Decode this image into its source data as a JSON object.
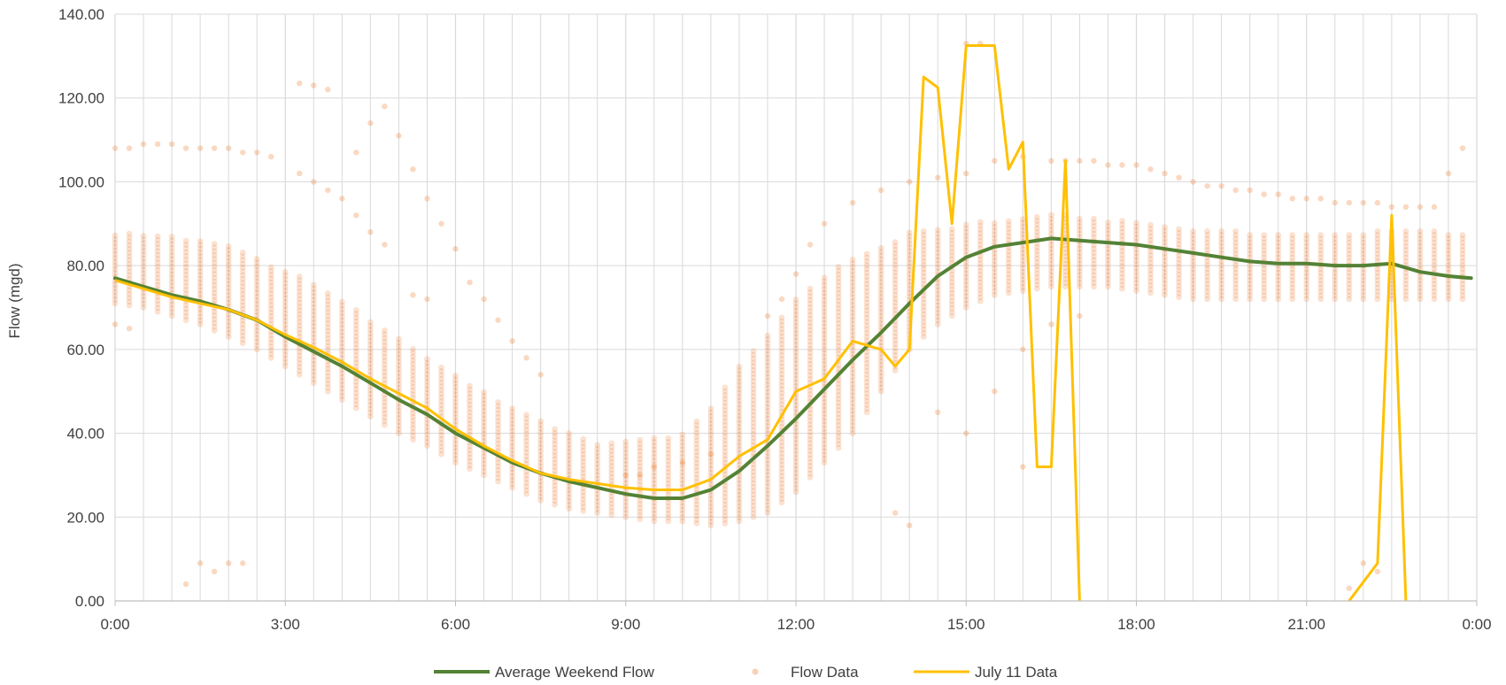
{
  "chart_data": {
    "type": "line",
    "title": "",
    "xlabel": "",
    "ylabel": "Flow (mgd)",
    "x_unit": "hours",
    "xlim": [
      0,
      24
    ],
    "ylim": [
      0,
      140
    ],
    "grid": true,
    "legend_position": "bottom",
    "x_ticks": [
      {
        "value": 0,
        "label": "0:00"
      },
      {
        "value": 3,
        "label": "3:00"
      },
      {
        "value": 6,
        "label": "6:00"
      },
      {
        "value": 9,
        "label": "9:00"
      },
      {
        "value": 12,
        "label": "12:00"
      },
      {
        "value": 15,
        "label": "15:00"
      },
      {
        "value": 18,
        "label": "18:00"
      },
      {
        "value": 21,
        "label": "21:00"
      },
      {
        "value": 24,
        "label": "0:00"
      }
    ],
    "y_ticks": [
      {
        "value": 0,
        "label": "0.00"
      },
      {
        "value": 20,
        "label": "20.00"
      },
      {
        "value": 40,
        "label": "40.00"
      },
      {
        "value": 60,
        "label": "60.00"
      },
      {
        "value": 80,
        "label": "80.00"
      },
      {
        "value": 100,
        "label": "100.00"
      },
      {
        "value": 120,
        "label": "120.00"
      },
      {
        "value": 140,
        "label": "140.00"
      }
    ],
    "series": [
      {
        "name": "Average Weekend Flow",
        "kind": "line",
        "color": "#548235",
        "points": [
          [
            0,
            77
          ],
          [
            0.5,
            75
          ],
          [
            1,
            73
          ],
          [
            1.5,
            71.5
          ],
          [
            2,
            69.5
          ],
          [
            2.5,
            67
          ],
          [
            3,
            63
          ],
          [
            3.5,
            59.5
          ],
          [
            4,
            56
          ],
          [
            4.5,
            52
          ],
          [
            5,
            48
          ],
          [
            5.5,
            44.5
          ],
          [
            6,
            40
          ],
          [
            6.5,
            36.5
          ],
          [
            7,
            33
          ],
          [
            7.5,
            30.5
          ],
          [
            8,
            28.5
          ],
          [
            8.5,
            27
          ],
          [
            9,
            25.5
          ],
          [
            9.5,
            24.5
          ],
          [
            10,
            24.5
          ],
          [
            10.5,
            26.5
          ],
          [
            11,
            31
          ],
          [
            11.5,
            37
          ],
          [
            12,
            43.5
          ],
          [
            12.5,
            50.5
          ],
          [
            13,
            57.5
          ],
          [
            13.5,
            64
          ],
          [
            14,
            71
          ],
          [
            14.5,
            77.5
          ],
          [
            15,
            82
          ],
          [
            15.5,
            84.5
          ],
          [
            16,
            85.5
          ],
          [
            16.5,
            86.5
          ],
          [
            17,
            86
          ],
          [
            17.5,
            85.5
          ],
          [
            18,
            85
          ],
          [
            18.5,
            84
          ],
          [
            19,
            83
          ],
          [
            19.5,
            82
          ],
          [
            20,
            81
          ],
          [
            20.5,
            80.5
          ],
          [
            21,
            80.5
          ],
          [
            21.5,
            80
          ],
          [
            22,
            80
          ],
          [
            22.5,
            80.5
          ],
          [
            23,
            78.5
          ],
          [
            23.5,
            77.5
          ],
          [
            23.9,
            77
          ]
        ]
      },
      {
        "name": "Flow Data",
        "kind": "scatter-band",
        "color": "#ED7D31",
        "interval_hours": 0.25,
        "band": [
          [
            0,
            71,
            88
          ],
          [
            0.5,
            70,
            88
          ],
          [
            1,
            68,
            87
          ],
          [
            1.5,
            66,
            86
          ],
          [
            2,
            63,
            85
          ],
          [
            2.5,
            60,
            82
          ],
          [
            3,
            56,
            79
          ],
          [
            3.5,
            52,
            76
          ],
          [
            4,
            48,
            72
          ],
          [
            4.5,
            44,
            67
          ],
          [
            5,
            40,
            63
          ],
          [
            5.5,
            37,
            58
          ],
          [
            6,
            33,
            54
          ],
          [
            6.5,
            30,
            50
          ],
          [
            7,
            27,
            46
          ],
          [
            7.5,
            24,
            43
          ],
          [
            8,
            22,
            40
          ],
          [
            8.5,
            21,
            38
          ],
          [
            9,
            20,
            38
          ],
          [
            9.5,
            19,
            39
          ],
          [
            10,
            19,
            40
          ],
          [
            10.5,
            18,
            46
          ],
          [
            11,
            19,
            56
          ],
          [
            11.5,
            21,
            64
          ],
          [
            12,
            26,
            72
          ],
          [
            12.5,
            33,
            78
          ],
          [
            13,
            40,
            82
          ],
          [
            13.5,
            50,
            85
          ],
          [
            14,
            60,
            88
          ],
          [
            14.5,
            66,
            89
          ],
          [
            15,
            70,
            90
          ],
          [
            15.5,
            73,
            91
          ],
          [
            16,
            74,
            92
          ],
          [
            16.5,
            75,
            93
          ],
          [
            17,
            75,
            92
          ],
          [
            17.5,
            75,
            91
          ],
          [
            18,
            74,
            91
          ],
          [
            18.5,
            73,
            90
          ],
          [
            19,
            72,
            89
          ],
          [
            19.5,
            72,
            89
          ],
          [
            20,
            72,
            88
          ],
          [
            20.5,
            72,
            88
          ],
          [
            21,
            72,
            88
          ],
          [
            21.5,
            72,
            88
          ],
          [
            22,
            72,
            88
          ],
          [
            22.5,
            72,
            89
          ],
          [
            23,
            72,
            89
          ],
          [
            23.5,
            72,
            88
          ],
          [
            23.9,
            72,
            88
          ]
        ],
        "outliers": [
          [
            0,
            108
          ],
          [
            0.25,
            108
          ],
          [
            0.5,
            109
          ],
          [
            0.75,
            109
          ],
          [
            1,
            109
          ],
          [
            1.25,
            108
          ],
          [
            1.5,
            108
          ],
          [
            1.75,
            108
          ],
          [
            2,
            108
          ],
          [
            2.25,
            107
          ],
          [
            2.5,
            107
          ],
          [
            2.75,
            106
          ],
          [
            3.25,
            123.5
          ],
          [
            3.5,
            123
          ],
          [
            3.75,
            122
          ],
          [
            3.25,
            102
          ],
          [
            3.5,
            100
          ],
          [
            3.75,
            98
          ],
          [
            4.0,
            96
          ],
          [
            4.25,
            107
          ],
          [
            4.5,
            114
          ],
          [
            4.75,
            118
          ],
          [
            5.0,
            111
          ],
          [
            4.25,
            92
          ],
          [
            4.5,
            88
          ],
          [
            4.75,
            85
          ],
          [
            5.25,
            103
          ],
          [
            5.5,
            96
          ],
          [
            5.75,
            90
          ],
          [
            6.0,
            84
          ],
          [
            5.25,
            73
          ],
          [
            5.5,
            72
          ],
          [
            6.25,
            76
          ],
          [
            6.5,
            72
          ],
          [
            6.75,
            67
          ],
          [
            7.0,
            62
          ],
          [
            7.25,
            58
          ],
          [
            7.5,
            54
          ],
          [
            1.25,
            4
          ],
          [
            1.5,
            9
          ],
          [
            1.75,
            7
          ],
          [
            2.0,
            9
          ],
          [
            2.25,
            9
          ],
          [
            0,
            66
          ],
          [
            0.25,
            65
          ],
          [
            13.75,
            21
          ],
          [
            14.0,
            18
          ],
          [
            15.0,
            133
          ],
          [
            15.25,
            133
          ],
          [
            16.0,
            32
          ],
          [
            16.5,
            105
          ],
          [
            16.75,
            105
          ],
          [
            17.0,
            105
          ],
          [
            17.25,
            105
          ],
          [
            17.5,
            104
          ],
          [
            17.75,
            104
          ],
          [
            18.0,
            104
          ],
          [
            18.25,
            103
          ],
          [
            18.5,
            102
          ],
          [
            18.75,
            101
          ],
          [
            19,
            100
          ],
          [
            19.25,
            99
          ],
          [
            19.5,
            99
          ],
          [
            19.75,
            98
          ],
          [
            20,
            98
          ],
          [
            20.25,
            97
          ],
          [
            20.5,
            97
          ],
          [
            20.75,
            96
          ],
          [
            21,
            96
          ],
          [
            21.25,
            96
          ],
          [
            21.5,
            95
          ],
          [
            21.75,
            95
          ],
          [
            22,
            95
          ],
          [
            22.25,
            95
          ],
          [
            22.5,
            94
          ],
          [
            22.75,
            94
          ],
          [
            23,
            94
          ],
          [
            23.25,
            94
          ],
          [
            23.5,
            102
          ],
          [
            23.75,
            108
          ],
          [
            21.75,
            3
          ],
          [
            22.0,
            9
          ],
          [
            22.25,
            7
          ],
          [
            11.5,
            68
          ],
          [
            11.75,
            72
          ],
          [
            12.0,
            78
          ],
          [
            12.25,
            85
          ],
          [
            12.5,
            90
          ],
          [
            13.0,
            95
          ],
          [
            13.5,
            98
          ],
          [
            14.0,
            100
          ],
          [
            14.5,
            101
          ],
          [
            15.0,
            102
          ],
          [
            15.5,
            105
          ],
          [
            16.0,
            106
          ],
          [
            14.5,
            45
          ],
          [
            15.0,
            40
          ],
          [
            15.5,
            50
          ],
          [
            16.0,
            60
          ],
          [
            16.5,
            66
          ],
          [
            17.0,
            68
          ],
          [
            9.0,
            30
          ],
          [
            9.25,
            30
          ],
          [
            9.5,
            32
          ],
          [
            10.0,
            33
          ],
          [
            10.5,
            35
          ]
        ]
      },
      {
        "name": "July 11 Data",
        "kind": "line",
        "color": "#FFC000",
        "segments": [
          [
            [
              0,
              76.5
            ],
            [
              0.5,
              74.5
            ],
            [
              1,
              72.5
            ],
            [
              1.5,
              71
            ],
            [
              2,
              69.5
            ],
            [
              2.5,
              67
            ],
            [
              3,
              63.5
            ],
            [
              3.5,
              60.5
            ],
            [
              4,
              57
            ],
            [
              4.5,
              53
            ],
            [
              5,
              49.5
            ],
            [
              5.5,
              46
            ],
            [
              6,
              41
            ],
            [
              6.5,
              37
            ],
            [
              7,
              33.5
            ],
            [
              7.5,
              30.5
            ],
            [
              8,
              29
            ],
            [
              8.5,
              28
            ],
            [
              9,
              27
            ],
            [
              9.5,
              26.5
            ],
            [
              10,
              26.5
            ],
            [
              10.5,
              29
            ],
            [
              11,
              34.5
            ],
            [
              11.5,
              38.5
            ],
            [
              12,
              50
            ],
            [
              12.5,
              53
            ],
            [
              13,
              62
            ],
            [
              13.5,
              60
            ],
            [
              13.75,
              56
            ],
            [
              14,
              60
            ],
            [
              14.25,
              125
            ],
            [
              14.5,
              122.5
            ],
            [
              14.75,
              90
            ],
            [
              15,
              132.5
            ],
            [
              15.25,
              132.5
            ],
            [
              15.5,
              132.5
            ],
            [
              15.75,
              103
            ],
            [
              16,
              109.5
            ],
            [
              16.25,
              32
            ],
            [
              16.5,
              32
            ],
            [
              16.75,
              105
            ],
            [
              17,
              0
            ]
          ],
          [
            [
              21.75,
              0
            ],
            [
              22.25,
              9
            ],
            [
              22.5,
              92
            ],
            [
              22.75,
              0
            ]
          ]
        ]
      }
    ]
  },
  "legend": [
    {
      "label": "Average Weekend Flow",
      "type": "line",
      "color": "#548235"
    },
    {
      "label": "Flow Data",
      "type": "marker",
      "color": "#ED7D31"
    },
    {
      "label": "July 11 Data",
      "type": "line",
      "color": "#FFC000"
    }
  ],
  "colors": {
    "grid": "#D9D9D9",
    "axis": "#BFBFBF",
    "text": "#404040"
  }
}
